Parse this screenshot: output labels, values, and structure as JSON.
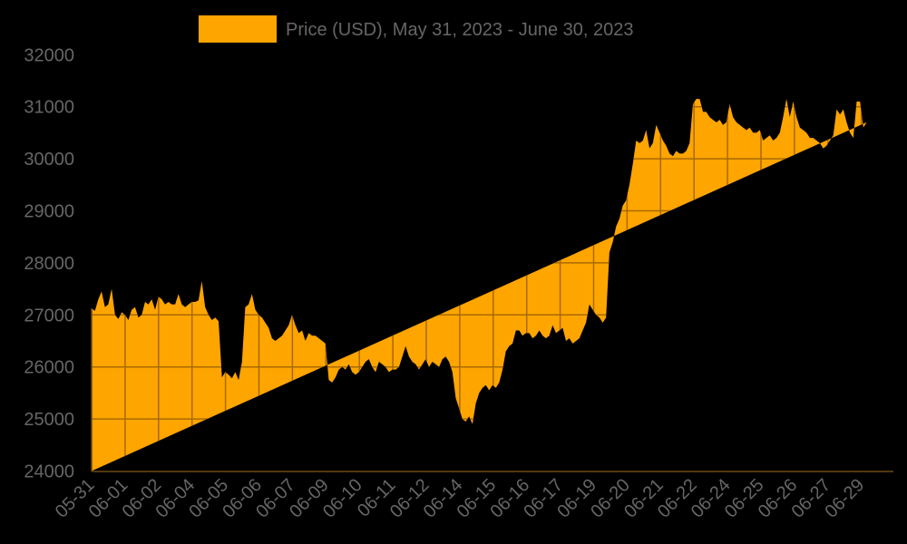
{
  "chart_data": {
    "type": "area",
    "title": "",
    "legend": {
      "label": "Price (USD), May 31, 2023 - June 30, 2023",
      "position": "top",
      "color": "#FFA500"
    },
    "xlabel": "",
    "ylabel": "",
    "ylim": [
      24000,
      32000
    ],
    "yticks": [
      24000,
      25000,
      26000,
      27000,
      28000,
      29000,
      30000,
      31000,
      32000
    ],
    "xticks": [
      "05-31",
      "06-01",
      "06-02",
      "06-04",
      "06-05",
      "06-06",
      "06-07",
      "06-09",
      "06-10",
      "06-11",
      "06-12",
      "06-14",
      "06-15",
      "06-16",
      "06-17",
      "06-19",
      "06-20",
      "06-21",
      "06-22",
      "06-24",
      "06-25",
      "06-26",
      "06-27",
      "06-29"
    ],
    "grid": true,
    "colors": {
      "fill": "#FFA500",
      "grid": "#A86A00",
      "axis": "#6B4A10",
      "text": "#666666",
      "background": "#000000"
    },
    "series": [
      {
        "name": "Price (USD)",
        "x_days": [
          0,
          0.1,
          0.2,
          0.3,
          0.4,
          0.5,
          0.6,
          0.7,
          0.8,
          0.9,
          1.0,
          1.1,
          1.2,
          1.3,
          1.4,
          1.5,
          1.6,
          1.7,
          1.8,
          1.9,
          2.0,
          2.1,
          2.2,
          2.3,
          2.4,
          2.5,
          2.6,
          2.7,
          2.8,
          2.9,
          3.0,
          3.1,
          3.2,
          3.3,
          3.4,
          3.5,
          3.6,
          3.7,
          3.8,
          3.9,
          4.0,
          4.1,
          4.2,
          4.3,
          4.4,
          4.5,
          4.6,
          4.7,
          4.8,
          4.9,
          5.0,
          5.1,
          5.2,
          5.3,
          5.4,
          5.5,
          5.6,
          5.7,
          5.8,
          5.9,
          6.0,
          6.1,
          6.2,
          6.3,
          6.4,
          6.5,
          6.6,
          6.7,
          6.8,
          6.9,
          7.0,
          7.1,
          7.2,
          7.3,
          7.4,
          7.5,
          7.6,
          7.7,
          7.8,
          7.9,
          8.0,
          8.1,
          8.2,
          8.3,
          8.4,
          8.5,
          8.6,
          8.7,
          8.8,
          8.9,
          9.0,
          9.1,
          9.2,
          9.3,
          9.4,
          9.5,
          9.6,
          9.7,
          9.8,
          9.9,
          10.0,
          10.1,
          10.2,
          10.3,
          10.4,
          10.5,
          10.6,
          10.7,
          10.8,
          10.9,
          11.0,
          11.1,
          11.2,
          11.3,
          11.4,
          11.5,
          11.6,
          11.7,
          11.8,
          11.9,
          12.0,
          12.1,
          12.2,
          12.3,
          12.4,
          12.5,
          12.6,
          12.7,
          12.8,
          12.9,
          13.0,
          13.1,
          13.2,
          13.3,
          13.4,
          13.5,
          13.6,
          13.7,
          13.8,
          13.9,
          14.0,
          14.1,
          14.2,
          14.3,
          14.4,
          14.5,
          14.6,
          14.7,
          14.8,
          14.9,
          15.0,
          15.1,
          15.2,
          15.3,
          15.4,
          15.5,
          15.6,
          15.7,
          15.8,
          15.9,
          16.0,
          16.1,
          16.2,
          16.3,
          16.4,
          16.5,
          16.6,
          16.7,
          16.8,
          16.9,
          17.0,
          17.1,
          17.2,
          17.3,
          17.4,
          17.5,
          17.6,
          17.7,
          17.8,
          17.9,
          18.0,
          18.1,
          18.2,
          18.3,
          18.4,
          18.5,
          18.6,
          18.7,
          18.8,
          18.9,
          19.0,
          19.1,
          19.2,
          19.3,
          19.4,
          19.5,
          19.6,
          19.7,
          19.8,
          19.9,
          20.0,
          20.1,
          20.2,
          20.3,
          20.4,
          20.5,
          20.6,
          20.7,
          20.8,
          20.9,
          21.0,
          21.1,
          21.2,
          21.3,
          21.4,
          21.5,
          21.6,
          21.7,
          21.8,
          21.9,
          22.0,
          22.1,
          22.2,
          22.3,
          22.4,
          22.5,
          22.6,
          22.7,
          22.8,
          22.9,
          23.0,
          23.1,
          23.2,
          23.3,
          23.4,
          23.5,
          23.6,
          23.7,
          23.8,
          23.9,
          24.0
        ],
        "values": [
          27120,
          27080,
          27300,
          27450,
          27150,
          27200,
          27500,
          27000,
          26920,
          27050,
          27000,
          26900,
          27100,
          27150,
          26950,
          27000,
          27250,
          27200,
          27300,
          27100,
          27350,
          27300,
          27200,
          27250,
          27200,
          27200,
          27400,
          27200,
          27150,
          27200,
          27250,
          27250,
          27280,
          27650,
          27150,
          27000,
          26900,
          26950,
          26880,
          25800,
          25900,
          25850,
          25780,
          25900,
          25750,
          26100,
          27150,
          27200,
          27400,
          27100,
          27000,
          26950,
          26850,
          26750,
          26550,
          26500,
          26550,
          26600,
          26700,
          26800,
          27000,
          26800,
          26650,
          26700,
          26500,
          26650,
          26600,
          26600,
          26550,
          26500,
          26450,
          25750,
          25700,
          25800,
          25950,
          26000,
          25950,
          26050,
          25900,
          25850,
          25900,
          26000,
          26100,
          26150,
          26000,
          25900,
          26100,
          26050,
          26000,
          25900,
          25950,
          25950,
          26000,
          26200,
          26400,
          26200,
          26100,
          26050,
          25950,
          26050,
          26150,
          26000,
          26100,
          26050,
          26000,
          26150,
          26200,
          26100,
          25900,
          25400,
          25200,
          25000,
          24950,
          25050,
          24900,
          25300,
          25500,
          25600,
          25650,
          25550,
          25650,
          25600,
          25700,
          25950,
          26300,
          26400,
          26450,
          26700,
          26700,
          26600,
          26650,
          26650,
          26550,
          26600,
          26700,
          26600,
          26550,
          26600,
          26800,
          26650,
          26700,
          26750,
          26500,
          26550,
          26450,
          26500,
          26550,
          26700,
          26850,
          27200,
          27100,
          27000,
          26950,
          26850,
          26950,
          28200,
          28400,
          28700,
          28850,
          29100,
          29200,
          29500,
          29900,
          30350,
          30300,
          30350,
          30550,
          30200,
          30300,
          30650,
          30500,
          30350,
          30250,
          30100,
          30050,
          30150,
          30100,
          30100,
          30150,
          30300,
          31050,
          31150,
          31150,
          30900,
          30900,
          30800,
          30750,
          30700,
          30750,
          30650,
          30700,
          31050,
          30800,
          30700,
          30650,
          30600,
          30550,
          30600,
          30500,
          30500,
          30550,
          30350,
          30400,
          30450,
          30350,
          30400,
          30500,
          30800,
          31150,
          30800,
          31100,
          30800,
          30600,
          30550,
          30500,
          30400,
          30400,
          30350,
          30300,
          30200,
          30250,
          30350,
          30450,
          30950,
          30850,
          30950,
          30700,
          30500,
          30400,
          31100,
          31100,
          30600,
          30700
        ]
      }
    ]
  }
}
